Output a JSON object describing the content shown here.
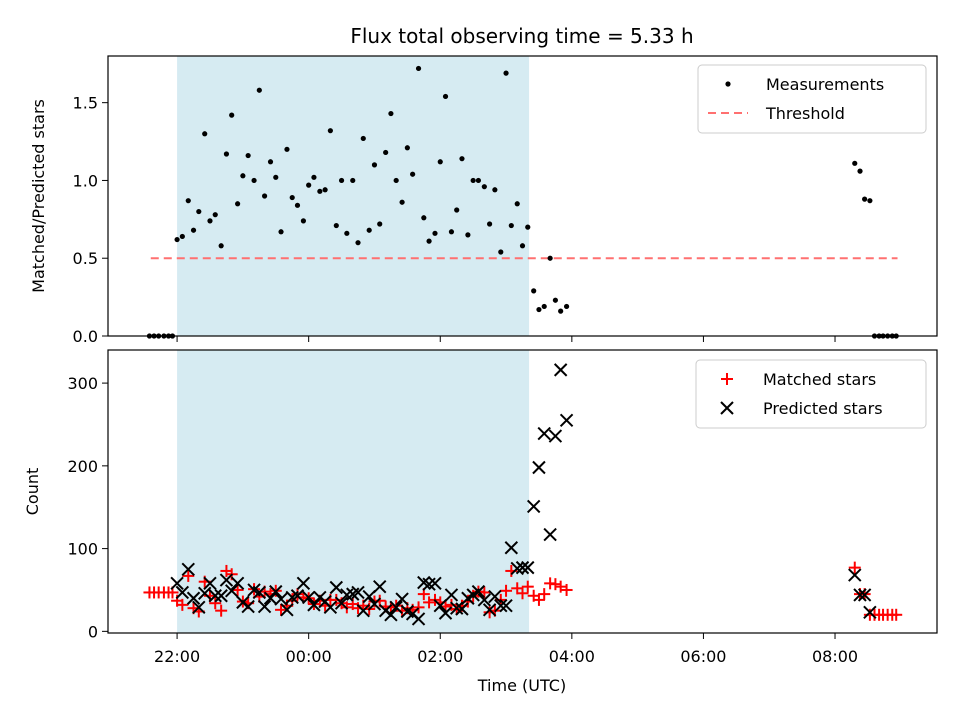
{
  "chart_data": {
    "title": "Flux total observing time = 5.33 h",
    "xlabel": "Time (UTC)",
    "x_ticks": [
      "22:00",
      "00:00",
      "02:00",
      "04:00",
      "06:00",
      "08:00"
    ],
    "x_tick_hours": [
      22,
      24,
      26,
      28,
      30,
      32
    ],
    "x_range_hours": [
      20.95,
      33.55
    ],
    "x_note": "x values are hours since 00:00 UTC of first night (values > 24 are after midnight)",
    "shaded_region_hours": [
      22.0,
      27.35
    ],
    "shaded_color": "#add8e6",
    "top": {
      "type": "scatter",
      "ylabel": "Matched/Predicted stars",
      "ylim": [
        0,
        1.8
      ],
      "y_ticks": [
        "0.0",
        "0.5",
        "1.0",
        "1.5"
      ],
      "y_tick_values": [
        0,
        0.5,
        1.0,
        1.5
      ],
      "threshold": {
        "name": "Threshold",
        "value": 0.5,
        "x_range_hours": [
          21.6,
          32.95
        ],
        "color": "#ff7070"
      },
      "series": [
        {
          "name": "Measurements",
          "color": "#000000",
          "points": [
            [
              21.58,
              0
            ],
            [
              21.65,
              0
            ],
            [
              21.72,
              0
            ],
            [
              21.8,
              0
            ],
            [
              21.87,
              0
            ],
            [
              21.93,
              0
            ],
            [
              22.0,
              0.62
            ],
            [
              22.08,
              0.64
            ],
            [
              22.17,
              0.87
            ],
            [
              22.25,
              0.68
            ],
            [
              22.33,
              0.8
            ],
            [
              22.42,
              1.3
            ],
            [
              22.5,
              0.74
            ],
            [
              22.58,
              0.78
            ],
            [
              22.67,
              0.58
            ],
            [
              22.75,
              1.17
            ],
            [
              22.83,
              1.42
            ],
            [
              22.92,
              0.85
            ],
            [
              23.0,
              1.03
            ],
            [
              23.08,
              1.16
            ],
            [
              23.17,
              1.0
            ],
            [
              23.25,
              1.58
            ],
            [
              23.33,
              0.9
            ],
            [
              23.42,
              1.12
            ],
            [
              23.5,
              1.02
            ],
            [
              23.58,
              0.67
            ],
            [
              23.67,
              1.2
            ],
            [
              23.75,
              0.89
            ],
            [
              23.83,
              0.84
            ],
            [
              23.92,
              0.74
            ],
            [
              24.0,
              0.97
            ],
            [
              24.08,
              1.02
            ],
            [
              24.17,
              0.93
            ],
            [
              24.25,
              0.94
            ],
            [
              24.33,
              1.32
            ],
            [
              24.42,
              0.71
            ],
            [
              24.5,
              1.0
            ],
            [
              24.58,
              0.66
            ],
            [
              24.67,
              1.0
            ],
            [
              24.75,
              0.6
            ],
            [
              24.83,
              1.27
            ],
            [
              24.92,
              0.68
            ],
            [
              25.0,
              1.1
            ],
            [
              25.08,
              0.72
            ],
            [
              25.17,
              1.18
            ],
            [
              25.25,
              1.43
            ],
            [
              25.33,
              1.0
            ],
            [
              25.42,
              0.86
            ],
            [
              25.5,
              1.21
            ],
            [
              25.58,
              1.04
            ],
            [
              25.67,
              1.72
            ],
            [
              25.75,
              0.76
            ],
            [
              25.83,
              0.61
            ],
            [
              25.92,
              0.66
            ],
            [
              26.0,
              1.12
            ],
            [
              26.08,
              1.54
            ],
            [
              26.17,
              0.67
            ],
            [
              26.25,
              0.81
            ],
            [
              26.33,
              1.14
            ],
            [
              26.42,
              0.65
            ],
            [
              26.5,
              1.0
            ],
            [
              26.58,
              1.0
            ],
            [
              26.67,
              0.96
            ],
            [
              26.75,
              0.72
            ],
            [
              26.83,
              0.94
            ],
            [
              26.92,
              0.54
            ],
            [
              27.0,
              1.69
            ],
            [
              27.08,
              0.71
            ],
            [
              27.17,
              0.85
            ],
            [
              27.25,
              0.58
            ],
            [
              27.33,
              0.7
            ],
            [
              27.42,
              0.29
            ],
            [
              27.5,
              0.17
            ],
            [
              27.58,
              0.19
            ],
            [
              27.67,
              0.5
            ],
            [
              27.75,
              0.23
            ],
            [
              27.83,
              0.16
            ],
            [
              27.92,
              0.19
            ],
            [
              32.3,
              1.11
            ],
            [
              32.38,
              1.06
            ],
            [
              32.45,
              0.88
            ],
            [
              32.53,
              0.87
            ],
            [
              32.6,
              0
            ],
            [
              32.67,
              0
            ],
            [
              32.73,
              0
            ],
            [
              32.8,
              0
            ],
            [
              32.87,
              0
            ],
            [
              32.93,
              0
            ]
          ]
        }
      ],
      "legend": {
        "position": "top-right",
        "entries": [
          "Measurements",
          "Threshold"
        ]
      }
    },
    "bottom": {
      "type": "scatter",
      "ylabel": "Count",
      "ylim": [
        -2,
        340
      ],
      "y_ticks": [
        "0",
        "100",
        "200",
        "300"
      ],
      "y_tick_values": [
        0,
        100,
        200,
        300
      ],
      "series": [
        {
          "name": "Matched stars",
          "marker": "+",
          "color": "#ff0000",
          "points": [
            [
              21.58,
              47
            ],
            [
              21.65,
              47
            ],
            [
              21.72,
              47
            ],
            [
              21.8,
              47
            ],
            [
              21.87,
              47
            ],
            [
              21.93,
              47
            ],
            [
              22.0,
              37
            ],
            [
              22.08,
              32
            ],
            [
              22.17,
              67
            ],
            [
              22.25,
              28
            ],
            [
              22.33,
              24
            ],
            [
              22.42,
              60
            ],
            [
              22.5,
              43
            ],
            [
              22.58,
              34
            ],
            [
              22.67,
              25
            ],
            [
              22.75,
              73
            ],
            [
              22.83,
              69
            ],
            [
              22.92,
              50
            ],
            [
              23.0,
              36
            ],
            [
              23.08,
              34
            ],
            [
              23.17,
              51
            ],
            [
              23.25,
              42
            ],
            [
              23.33,
              48
            ],
            [
              23.42,
              45
            ],
            [
              23.5,
              49
            ],
            [
              23.58,
              26
            ],
            [
              23.67,
              31
            ],
            [
              23.75,
              37
            ],
            [
              23.83,
              45
            ],
            [
              23.92,
              41
            ],
            [
              24.0,
              40
            ],
            [
              24.08,
              33
            ],
            [
              24.17,
              37
            ],
            [
              24.25,
              31
            ],
            [
              24.33,
              38
            ],
            [
              24.42,
              38
            ],
            [
              24.5,
              34
            ],
            [
              24.58,
              29
            ],
            [
              24.67,
              33
            ],
            [
              24.75,
              28
            ],
            [
              24.83,
              31
            ],
            [
              24.92,
              27
            ],
            [
              25.0,
              36
            ],
            [
              25.08,
              37
            ],
            [
              25.17,
              30
            ],
            [
              25.25,
              29
            ],
            [
              25.33,
              31
            ],
            [
              25.42,
              25
            ],
            [
              25.5,
              28
            ],
            [
              25.58,
              26
            ],
            [
              25.67,
              29
            ],
            [
              25.75,
              45
            ],
            [
              25.83,
              35
            ],
            [
              25.92,
              38
            ],
            [
              26.0,
              35
            ],
            [
              26.08,
              30
            ],
            [
              26.17,
              32
            ],
            [
              26.25,
              27
            ],
            [
              26.33,
              31
            ],
            [
              26.42,
              36
            ],
            [
              26.5,
              43
            ],
            [
              26.58,
              48
            ],
            [
              26.67,
              47
            ],
            [
              26.75,
              23
            ],
            [
              26.83,
              25
            ],
            [
              26.92,
              38
            ],
            [
              27.0,
              49
            ],
            [
              27.08,
              73
            ],
            [
              27.17,
              52
            ],
            [
              27.25,
              46
            ],
            [
              27.33,
              54
            ],
            [
              27.42,
              43
            ],
            [
              27.5,
              38
            ],
            [
              27.58,
              45
            ],
            [
              27.67,
              58
            ],
            [
              27.75,
              57
            ],
            [
              27.83,
              54
            ],
            [
              27.92,
              50
            ],
            [
              32.3,
              77
            ],
            [
              32.38,
              45
            ],
            [
              32.45,
              45
            ],
            [
              32.53,
              20
            ],
            [
              32.6,
              20
            ],
            [
              32.67,
              20
            ],
            [
              32.73,
              20
            ],
            [
              32.8,
              20
            ],
            [
              32.87,
              20
            ],
            [
              32.93,
              20
            ]
          ]
        },
        {
          "name": "Predicted stars",
          "marker": "x",
          "color": "#000000",
          "points": [
            [
              22.0,
              58
            ],
            [
              22.08,
              47
            ],
            [
              22.17,
              75
            ],
            [
              22.25,
              40
            ],
            [
              22.33,
              29
            ],
            [
              22.42,
              46
            ],
            [
              22.5,
              58
            ],
            [
              22.58,
              43
            ],
            [
              22.67,
              43
            ],
            [
              22.75,
              62
            ],
            [
              22.83,
              49
            ],
            [
              22.92,
              58
            ],
            [
              23.0,
              35
            ],
            [
              23.08,
              30
            ],
            [
              23.17,
              50
            ],
            [
              23.25,
              47
            ],
            [
              23.33,
              30
            ],
            [
              23.42,
              40
            ],
            [
              23.5,
              48
            ],
            [
              23.58,
              39
            ],
            [
              23.67,
              26
            ],
            [
              23.75,
              41
            ],
            [
              23.83,
              43
            ],
            [
              23.92,
              58
            ],
            [
              24.0,
              41
            ],
            [
              24.08,
              32
            ],
            [
              24.17,
              41
            ],
            [
              24.25,
              36
            ],
            [
              24.33,
              29
            ],
            [
              24.42,
              53
            ],
            [
              24.5,
              34
            ],
            [
              24.58,
              44
            ],
            [
              24.67,
              45
            ],
            [
              24.75,
              47
            ],
            [
              24.83,
              25
            ],
            [
              24.92,
              42
            ],
            [
              25.0,
              33
            ],
            [
              25.08,
              54
            ],
            [
              25.17,
              25
            ],
            [
              25.25,
              20
            ],
            [
              25.33,
              29
            ],
            [
              25.42,
              39
            ],
            [
              25.5,
              24
            ],
            [
              25.58,
              21
            ],
            [
              25.67,
              15
            ],
            [
              25.75,
              59
            ],
            [
              25.83,
              57
            ],
            [
              25.92,
              58
            ],
            [
              26.0,
              31
            ],
            [
              26.08,
              22
            ],
            [
              26.17,
              44
            ],
            [
              26.25,
              28
            ],
            [
              26.33,
              27
            ],
            [
              26.42,
              40
            ],
            [
              26.5,
              44
            ],
            [
              26.58,
              48
            ],
            [
              26.67,
              38
            ],
            [
              26.75,
              26
            ],
            [
              26.83,
              42
            ],
            [
              26.92,
              31
            ],
            [
              27.0,
              31
            ],
            [
              27.08,
              101
            ],
            [
              27.17,
              76
            ],
            [
              27.25,
              77
            ],
            [
              27.33,
              77
            ],
            [
              27.42,
              151
            ],
            [
              27.5,
              198
            ],
            [
              27.58,
              239
            ],
            [
              27.67,
              117
            ],
            [
              27.75,
              236
            ],
            [
              27.83,
              316
            ],
            [
              27.92,
              255
            ],
            [
              32.3,
              68
            ],
            [
              32.38,
              44
            ],
            [
              32.45,
              44
            ],
            [
              32.53,
              23
            ]
          ]
        }
      ],
      "legend": {
        "position": "top-right",
        "entries": [
          "Matched stars",
          "Predicted stars"
        ]
      }
    }
  }
}
